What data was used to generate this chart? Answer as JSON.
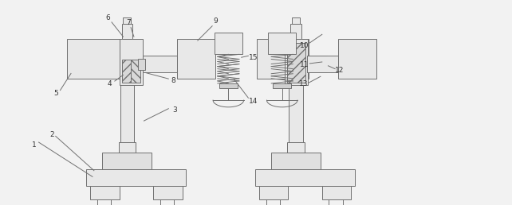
{
  "fig_width": 6.42,
  "fig_height": 2.58,
  "dpi": 100,
  "bg_color": "#f2f2f2",
  "line_color": "#707070",
  "line_width": 0.7,
  "face_color": "#f0f0f0",
  "box_face": "#e8e8e8"
}
